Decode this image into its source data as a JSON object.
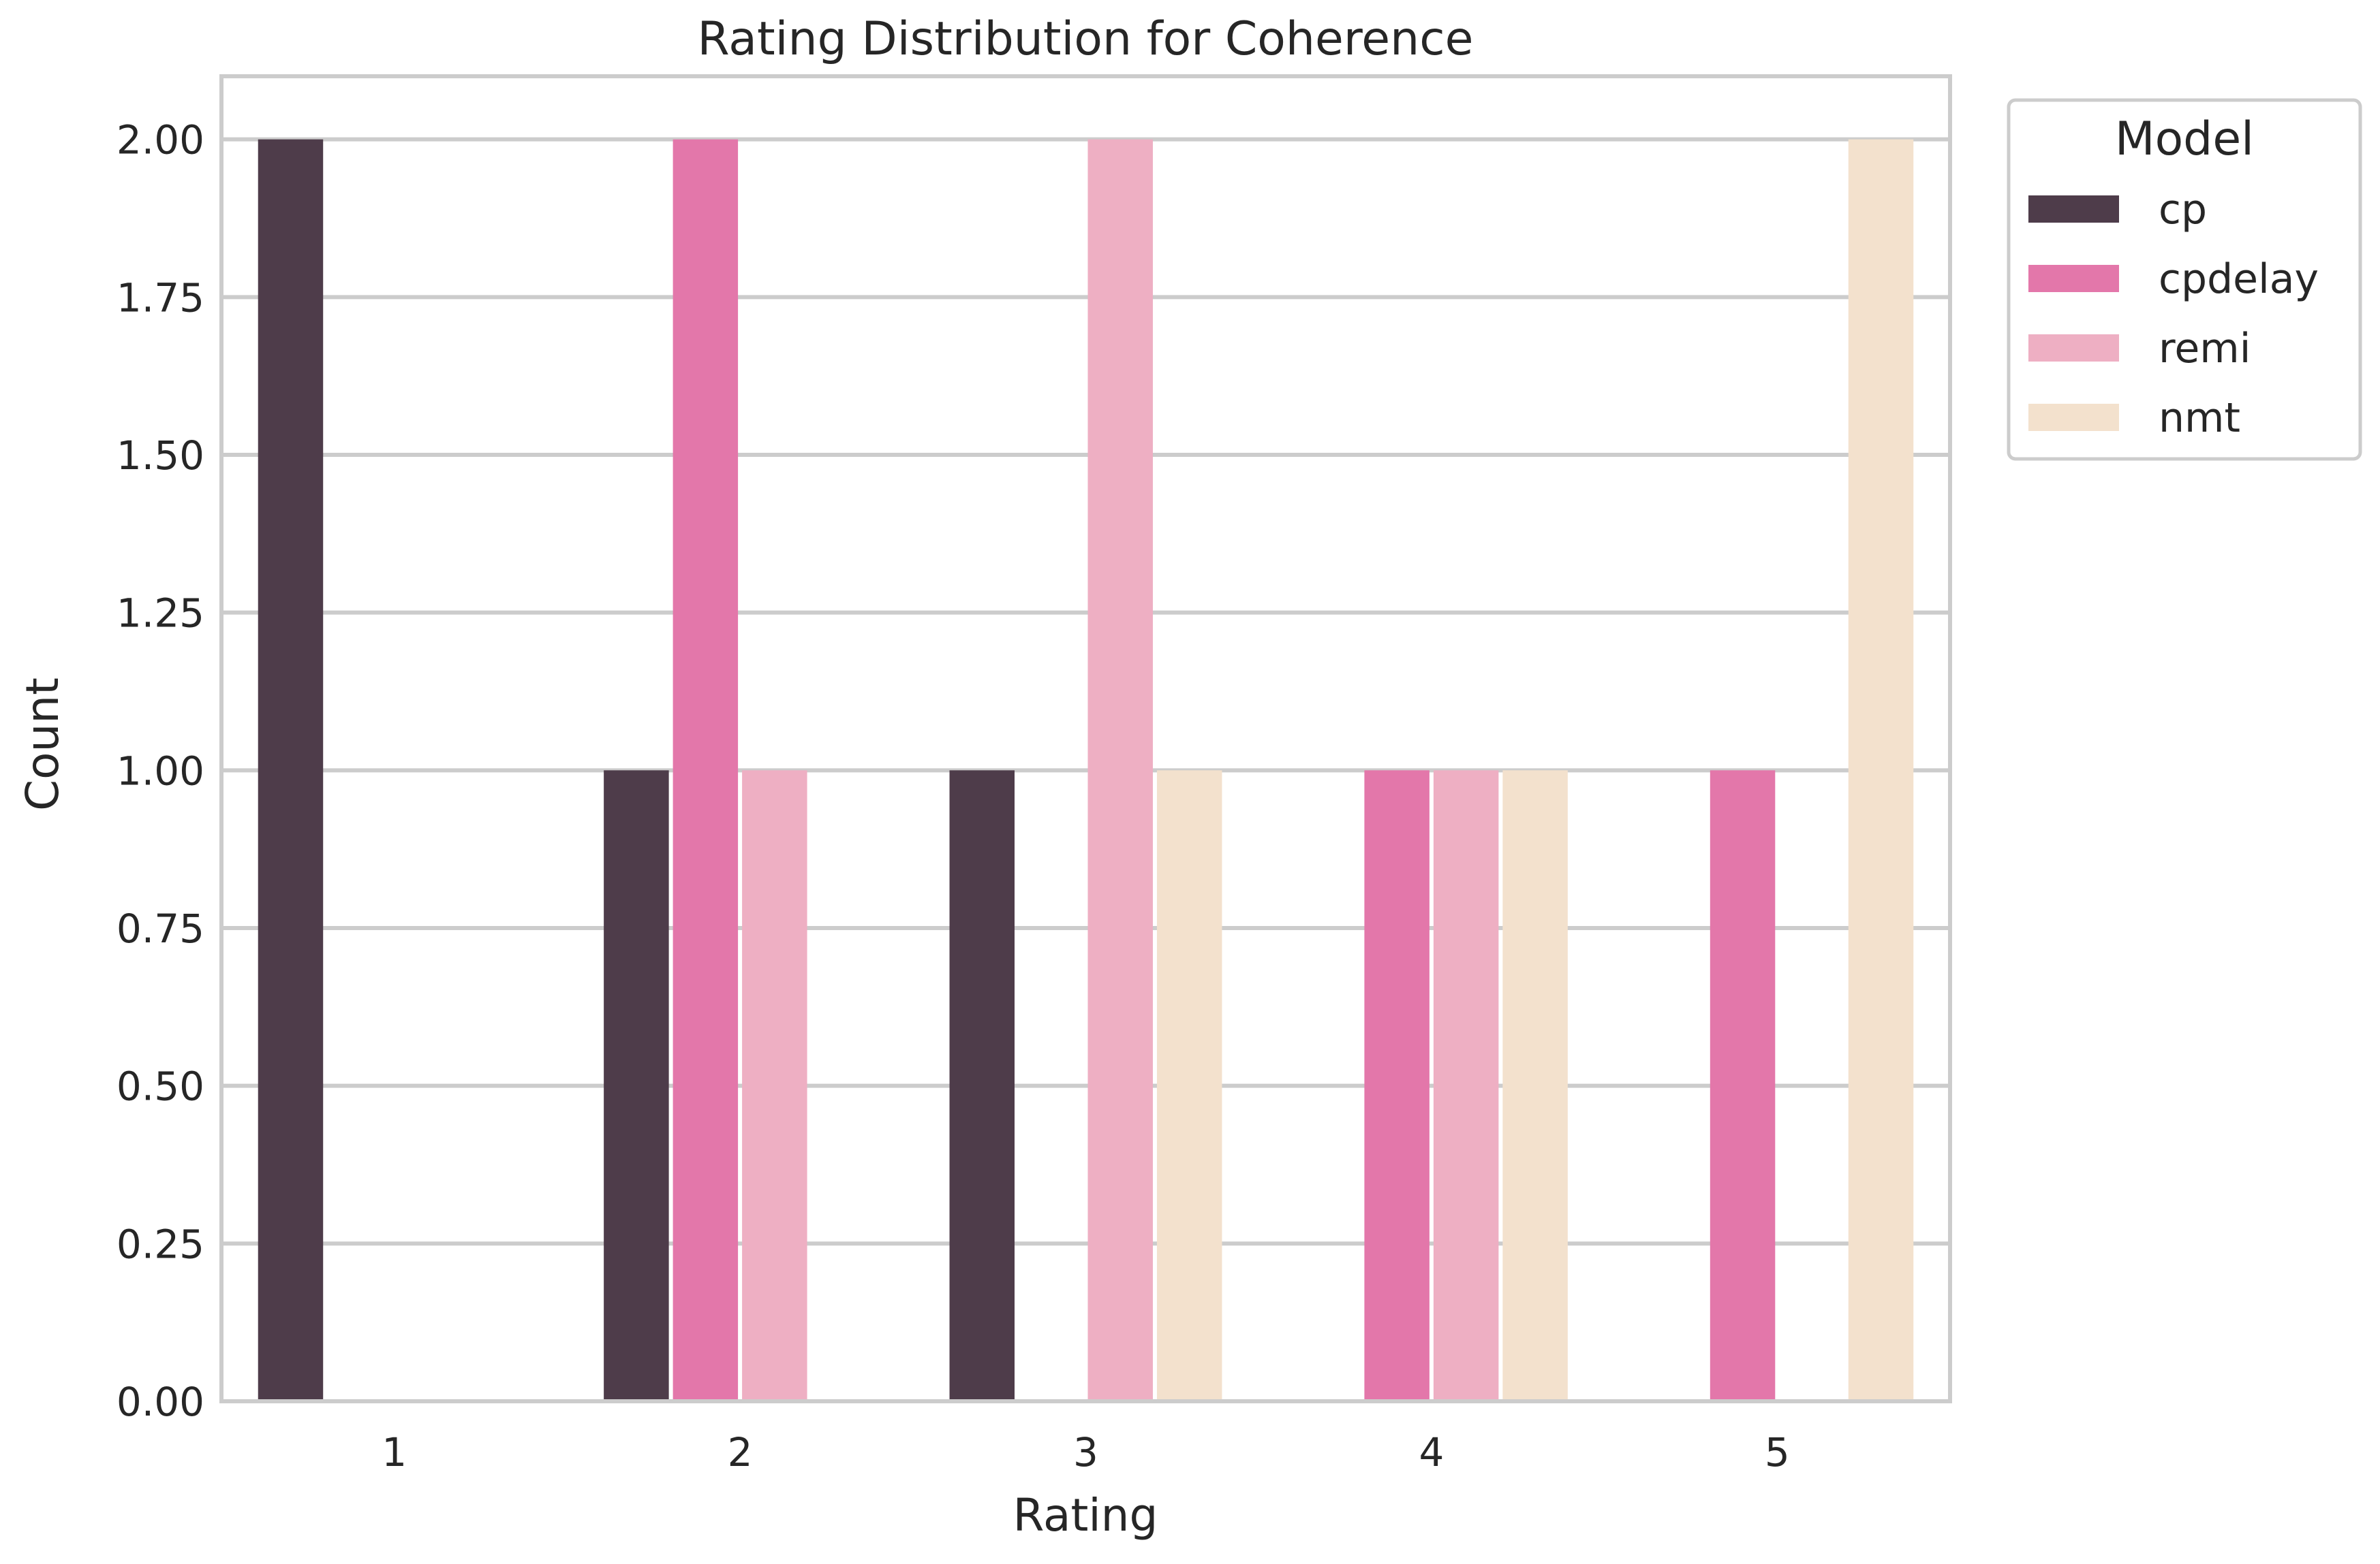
{
  "chart_data": {
    "type": "bar",
    "title": "Rating Distribution for Coherence",
    "xlabel": "Rating",
    "ylabel": "Count",
    "categories": [
      "1",
      "2",
      "3",
      "4",
      "5"
    ],
    "ylim": [
      0,
      2.1
    ],
    "yticks": [
      "0.00",
      "0.25",
      "0.50",
      "0.75",
      "1.00",
      "1.25",
      "1.50",
      "1.75",
      "2.00"
    ],
    "grid": true,
    "legend": {
      "title": "Model",
      "placement": "outside-top-right"
    },
    "series": [
      {
        "name": "cp",
        "color": "#4e3c4a",
        "values": [
          2,
          1,
          1,
          0,
          0
        ]
      },
      {
        "name": "cpdelay",
        "color": "#e377aa",
        "values": [
          0,
          2,
          0,
          1,
          1
        ]
      },
      {
        "name": "remi",
        "color": "#eeafc3",
        "values": [
          0,
          1,
          2,
          1,
          0
        ]
      },
      {
        "name": "nmt",
        "color": "#f3e1cd",
        "values": [
          0,
          0,
          1,
          1,
          2
        ]
      }
    ]
  }
}
